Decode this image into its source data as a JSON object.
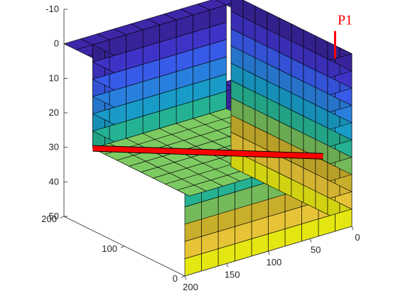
{
  "chart_data": {
    "type": "3d-grid",
    "title": "",
    "xlabel": "",
    "ylabel": "",
    "zlabel": "",
    "grid_dims": {
      "nx": 10,
      "ny": 10,
      "nz": 10
    },
    "x_axis": {
      "range": [
        0,
        200
      ],
      "ticks": [
        0,
        50,
        100,
        150,
        200
      ],
      "tick_labels": [
        "0",
        "50",
        "100",
        "150",
        "200"
      ]
    },
    "y_axis": {
      "range": [
        0,
        200
      ],
      "ticks": [
        0,
        100,
        200
      ],
      "tick_labels": [
        "0",
        "100",
        "200"
      ]
    },
    "z_axis": {
      "range": [
        -10,
        50
      ],
      "direction": "reversed",
      "ticks": [
        -10,
        0,
        10,
        20,
        30,
        40,
        50
      ],
      "tick_labels": [
        "-10",
        "0",
        "10",
        "20",
        "30",
        "40",
        "50"
      ]
    },
    "cut_out": {
      "x_range": [
        20,
        180
      ],
      "y_range": [
        20,
        180
      ],
      "z_range": [
        0,
        30
      ],
      "description": "cells removed to expose interior"
    },
    "wells": [
      {
        "name": "P1",
        "color": "#ff0000",
        "vertical": {
          "x": 180,
          "y": 0,
          "z_top": -8,
          "z_bottom": 0
        },
        "horizontal": {
          "from": [
            180,
            20,
            30
          ],
          "to": [
            20,
            180,
            30
          ]
        }
      }
    ],
    "colormap": "parula",
    "color_by": "depth",
    "layer_colors": [
      "#3e26a8",
      "#4537d8",
      "#3d62fd",
      "#2d8af0",
      "#1ba9d9",
      "#28c2a0",
      "#7eca62",
      "#dbbd2f",
      "#fbd53c",
      "#f9fb15"
    ]
  }
}
